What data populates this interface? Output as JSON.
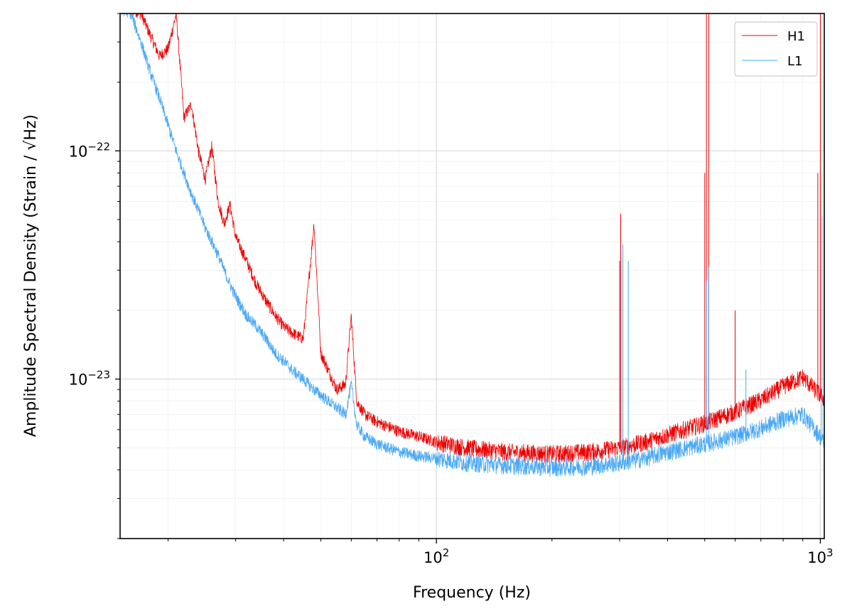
{
  "chart_data": {
    "type": "line",
    "xlabel": "Frequency (Hz)",
    "ylabel": "Amplitude Spectral Density (Strain / √Hz)",
    "xscale": "log",
    "yscale": "log",
    "xlim": [
      15,
      1024
    ],
    "ylim": [
      2e-24,
      4e-22
    ],
    "grid": true,
    "legend_position": "top-right",
    "x_tick_labels": [
      {
        "base": "10",
        "exp": "2",
        "value": 100
      },
      {
        "base": "10",
        "exp": "3",
        "value": 1000
      }
    ],
    "y_tick_labels": [
      {
        "base": "10",
        "exp": "−22",
        "value": 1e-22
      },
      {
        "base": "10",
        "exp": "−23",
        "value": 1e-23
      }
    ],
    "series": [
      {
        "name": "H1",
        "color": "#ee0000",
        "x": [
          15,
          16,
          17,
          18,
          19,
          20,
          21,
          22,
          23,
          24,
          25,
          26,
          27,
          28,
          29,
          30,
          32,
          34,
          36,
          38,
          40,
          42,
          45,
          48,
          50,
          55,
          58,
          60,
          62,
          65,
          70,
          80,
          90,
          100,
          120,
          150,
          200,
          250,
          300,
          350,
          400,
          500,
          600,
          700,
          800,
          900,
          1000,
          1024
        ],
        "y": [
          4.2e-22,
          4.2e-22,
          4e-22,
          3.2e-22,
          2.6e-22,
          2.8e-22,
          4e-22,
          1.4e-22,
          1.6e-22,
          1e-22,
          7.5e-23,
          1.05e-22,
          6e-23,
          4.8e-23,
          5.8e-23,
          4.2e-23,
          3.3e-23,
          2.6e-23,
          2.2e-23,
          1.9e-23,
          1.7e-23,
          1.6e-23,
          1.5e-23,
          4.8e-23,
          1.3e-23,
          9e-24,
          9.5e-24,
          1.9e-23,
          8e-24,
          7e-24,
          6.5e-24,
          5.9e-24,
          5.6e-24,
          5.3e-24,
          5e-24,
          4.8e-24,
          4.7e-24,
          4.8e-24,
          5e-24,
          5.3e-24,
          5.7e-24,
          6.4e-24,
          7.2e-24,
          8.1e-24,
          9.3e-24,
          1.02e-23,
          8.5e-24,
          8.2e-24
        ],
        "peaks": [
          {
            "x": 300,
            "y": 3.3e-23
          },
          {
            "x": 302,
            "y": 5.3e-23
          },
          {
            "x": 500,
            "y": 8e-23
          },
          {
            "x": 505,
            "y": 4e-22
          },
          {
            "x": 512,
            "y": 4e-22
          },
          {
            "x": 600,
            "y": 2e-23
          },
          {
            "x": 985,
            "y": 8e-23
          },
          {
            "x": 1000,
            "y": 4e-22
          }
        ]
      },
      {
        "name": "L1",
        "color": "#4aa8f5",
        "x": [
          15,
          16,
          17,
          18,
          19,
          20,
          21,
          22,
          23,
          24,
          25,
          26,
          27,
          28,
          29,
          30,
          32,
          34,
          36,
          38,
          40,
          42,
          45,
          48,
          50,
          55,
          58,
          60,
          62,
          65,
          70,
          80,
          90,
          100,
          120,
          150,
          200,
          250,
          300,
          350,
          400,
          500,
          600,
          700,
          800,
          900,
          1000,
          1024
        ],
        "y": [
          4.2e-22,
          4e-22,
          3e-22,
          2.2e-22,
          1.7e-22,
          1.3e-22,
          1e-22,
          8e-23,
          6.5e-23,
          5.5e-23,
          4.6e-23,
          4e-23,
          3.5e-23,
          3e-23,
          2.6e-23,
          2.3e-23,
          1.9e-23,
          1.7e-23,
          1.5e-23,
          1.3e-23,
          1.2e-23,
          1.1e-23,
          1e-23,
          9e-24,
          8.5e-24,
          7.5e-24,
          7e-24,
          9.5e-24,
          6.3e-24,
          5.6e-24,
          5.2e-24,
          4.8e-24,
          4.6e-24,
          4.5e-24,
          4.3e-24,
          4.2e-24,
          4.1e-24,
          4.15e-24,
          4.3e-24,
          4.5e-24,
          4.8e-24,
          5.2e-24,
          5.6e-24,
          6.1e-24,
          6.7e-24,
          7e-24,
          5.6e-24,
          5.2e-24
        ],
        "peaks": [
          {
            "x": 306,
            "y": 3.9e-23
          },
          {
            "x": 316,
            "y": 3.3e-23
          },
          {
            "x": 505,
            "y": 2.7e-23
          },
          {
            "x": 512,
            "y": 3.1e-23
          },
          {
            "x": 640,
            "y": 1.1e-23
          },
          {
            "x": 1010,
            "y": 5.2e-23
          }
        ]
      }
    ]
  }
}
